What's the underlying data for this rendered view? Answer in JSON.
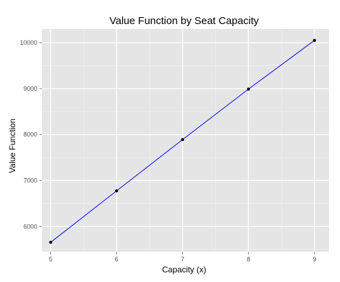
{
  "chart_data": {
    "type": "line",
    "title": "Value Function by Seat Capacity",
    "xlabel": "Capacity (x)",
    "ylabel": "Value Function",
    "x": [
      5,
      6,
      7,
      8,
      9
    ],
    "series": [
      {
        "values": [
          5655,
          6775,
          7890,
          8990,
          10050
        ]
      }
    ],
    "xlim": [
      4.87,
      9.22
    ],
    "ylim": [
      5450,
      10300
    ],
    "xticks": [
      5,
      6,
      7,
      8,
      9
    ],
    "yticks": [
      6000,
      7000,
      8000,
      9000,
      10000
    ],
    "grid": true,
    "colors": {
      "panel": "#e5e5e5",
      "grid_major": "#ffffff",
      "grid_minor": "#f2f2f2",
      "line": "#0000ff",
      "point": "#000000",
      "tick": "#7f7f7f"
    }
  }
}
